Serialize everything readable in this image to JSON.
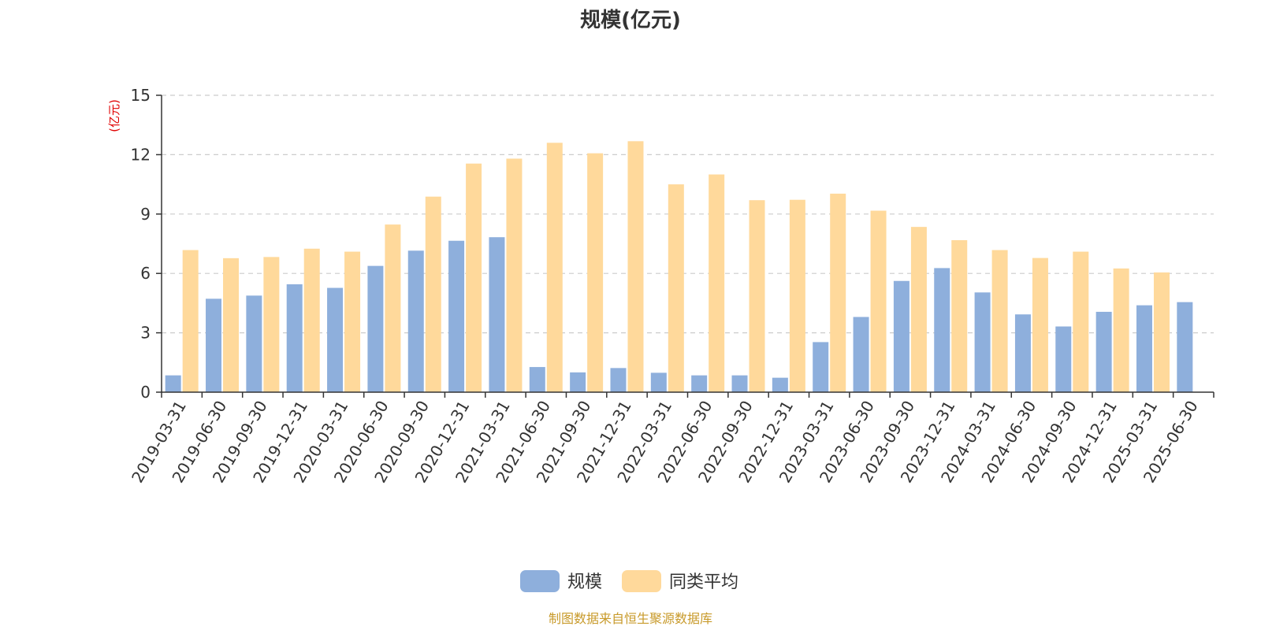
{
  "chart_data": {
    "type": "bar",
    "title": "规模(亿元)",
    "y_unit_label": "(亿元)",
    "categories": [
      "2019-03-31",
      "2019-06-30",
      "2019-09-30",
      "2019-12-31",
      "2020-03-31",
      "2020-06-30",
      "2020-09-30",
      "2020-12-31",
      "2021-03-31",
      "2021-06-30",
      "2021-09-30",
      "2021-12-31",
      "2022-03-31",
      "2022-06-30",
      "2022-09-30",
      "2022-12-31",
      "2023-03-31",
      "2023-06-30",
      "2023-09-30",
      "2023-12-31",
      "2024-03-31",
      "2024-06-30",
      "2024-09-30",
      "2024-12-31",
      "2025-03-31",
      "2025-06-30"
    ],
    "series": [
      {
        "name": "规模",
        "color": "#8eafdc",
        "values": [
          0.85,
          4.72,
          4.88,
          5.45,
          5.27,
          6.38,
          7.15,
          7.65,
          7.83,
          1.27,
          1.0,
          1.22,
          0.98,
          0.85,
          0.85,
          0.73,
          2.53,
          3.8,
          5.62,
          6.27,
          5.04,
          3.93,
          3.32,
          4.06,
          4.39,
          4.55
        ]
      },
      {
        "name": "同类平均",
        "color": "#ffd99b",
        "values": [
          7.18,
          6.77,
          6.83,
          7.25,
          7.1,
          8.47,
          9.88,
          11.55,
          11.8,
          12.6,
          12.07,
          12.68,
          10.5,
          11.0,
          9.7,
          9.72,
          10.03,
          9.17,
          8.35,
          7.68,
          7.18,
          6.78,
          7.1,
          6.25,
          6.05,
          null
        ]
      }
    ],
    "ylim": [
      0,
      15
    ],
    "yticks": [
      0,
      3,
      6,
      9,
      12,
      15
    ],
    "grid": true,
    "legend_position": "bottom-center"
  },
  "footer": {
    "source": "制图数据来自恒生聚源数据库"
  }
}
